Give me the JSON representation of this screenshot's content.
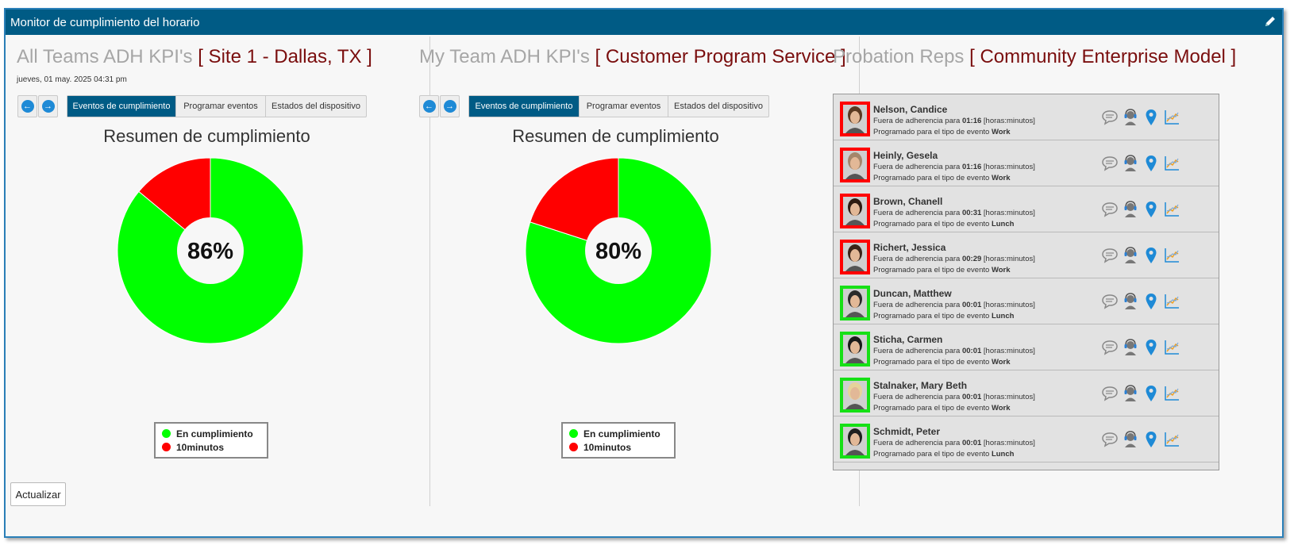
{
  "window": {
    "title": "Monitor de cumplimiento del horario"
  },
  "panels": [
    {
      "title": "All Teams ADH KPI's",
      "subtitle": "[ Site 1 - Dallas, TX ]",
      "date": "jueves, 01 may. 2025 04:31 pm",
      "tabs": [
        "Eventos de cumplimiento",
        "Programar eventos",
        "Estados del dispositivo"
      ],
      "active_tab": 0,
      "chart_title": "Resumen de cumplimiento",
      "center_label": "86%"
    },
    {
      "title": "My Team ADH KPI's",
      "subtitle": "[ Customer Program Service ]",
      "date": "",
      "tabs": [
        "Eventos de cumplimiento",
        "Programar eventos",
        "Estados del dispositivo"
      ],
      "active_tab": 0,
      "chart_title": "Resumen de cumplimiento",
      "center_label": "80%"
    },
    {
      "title": "Probation Reps",
      "subtitle": "[ Community Enterprise Model ]"
    }
  ],
  "legend": [
    "En cumplimiento",
    "10minutos"
  ],
  "colors": {
    "in_compliance": "#00ff00",
    "out": "#ff0000",
    "titlebar": "#005b85",
    "bracket": "#7a0e0e"
  },
  "chart_data": [
    {
      "type": "pie",
      "title": "Resumen de cumplimiento",
      "categories": [
        "En cumplimiento",
        "10minutos"
      ],
      "values": [
        86,
        14
      ],
      "center_label": "86%"
    },
    {
      "type": "pie",
      "title": "Resumen de cumplimiento",
      "categories": [
        "En cumplimiento",
        "10minutos"
      ],
      "values": [
        80,
        20
      ],
      "center_label": "80%"
    }
  ],
  "rep_text": {
    "prefix1": "Fuera de adherencia para",
    "suffix1": "[horas:minutos]",
    "prefix2": "Programado para el tipo de evento"
  },
  "reps": [
    {
      "name": "Nelson, Candice",
      "time": "01:16",
      "event": "Work",
      "status": "out"
    },
    {
      "name": "Heinly, Gesela",
      "time": "01:16",
      "event": "Work",
      "status": "out"
    },
    {
      "name": "Brown, Chanell",
      "time": "00:31",
      "event": "Lunch",
      "status": "out"
    },
    {
      "name": "Richert, Jessica",
      "time": "00:29",
      "event": "Work",
      "status": "out"
    },
    {
      "name": "Duncan, Matthew",
      "time": "00:01",
      "event": "Lunch",
      "status": "ok"
    },
    {
      "name": "Sticha, Carmen",
      "time": "00:01",
      "event": "Work",
      "status": "ok"
    },
    {
      "name": "Stalnaker, Mary Beth",
      "time": "00:01",
      "event": "Work",
      "status": "ok"
    },
    {
      "name": "Schmidt, Peter",
      "time": "00:01",
      "event": "Lunch",
      "status": "ok"
    }
  ],
  "rep_icons": [
    "chat-icon",
    "headset-agent-icon",
    "location-pin-icon",
    "line-chart-icon"
  ],
  "footer": {
    "refresh_label": "Actualizar"
  }
}
